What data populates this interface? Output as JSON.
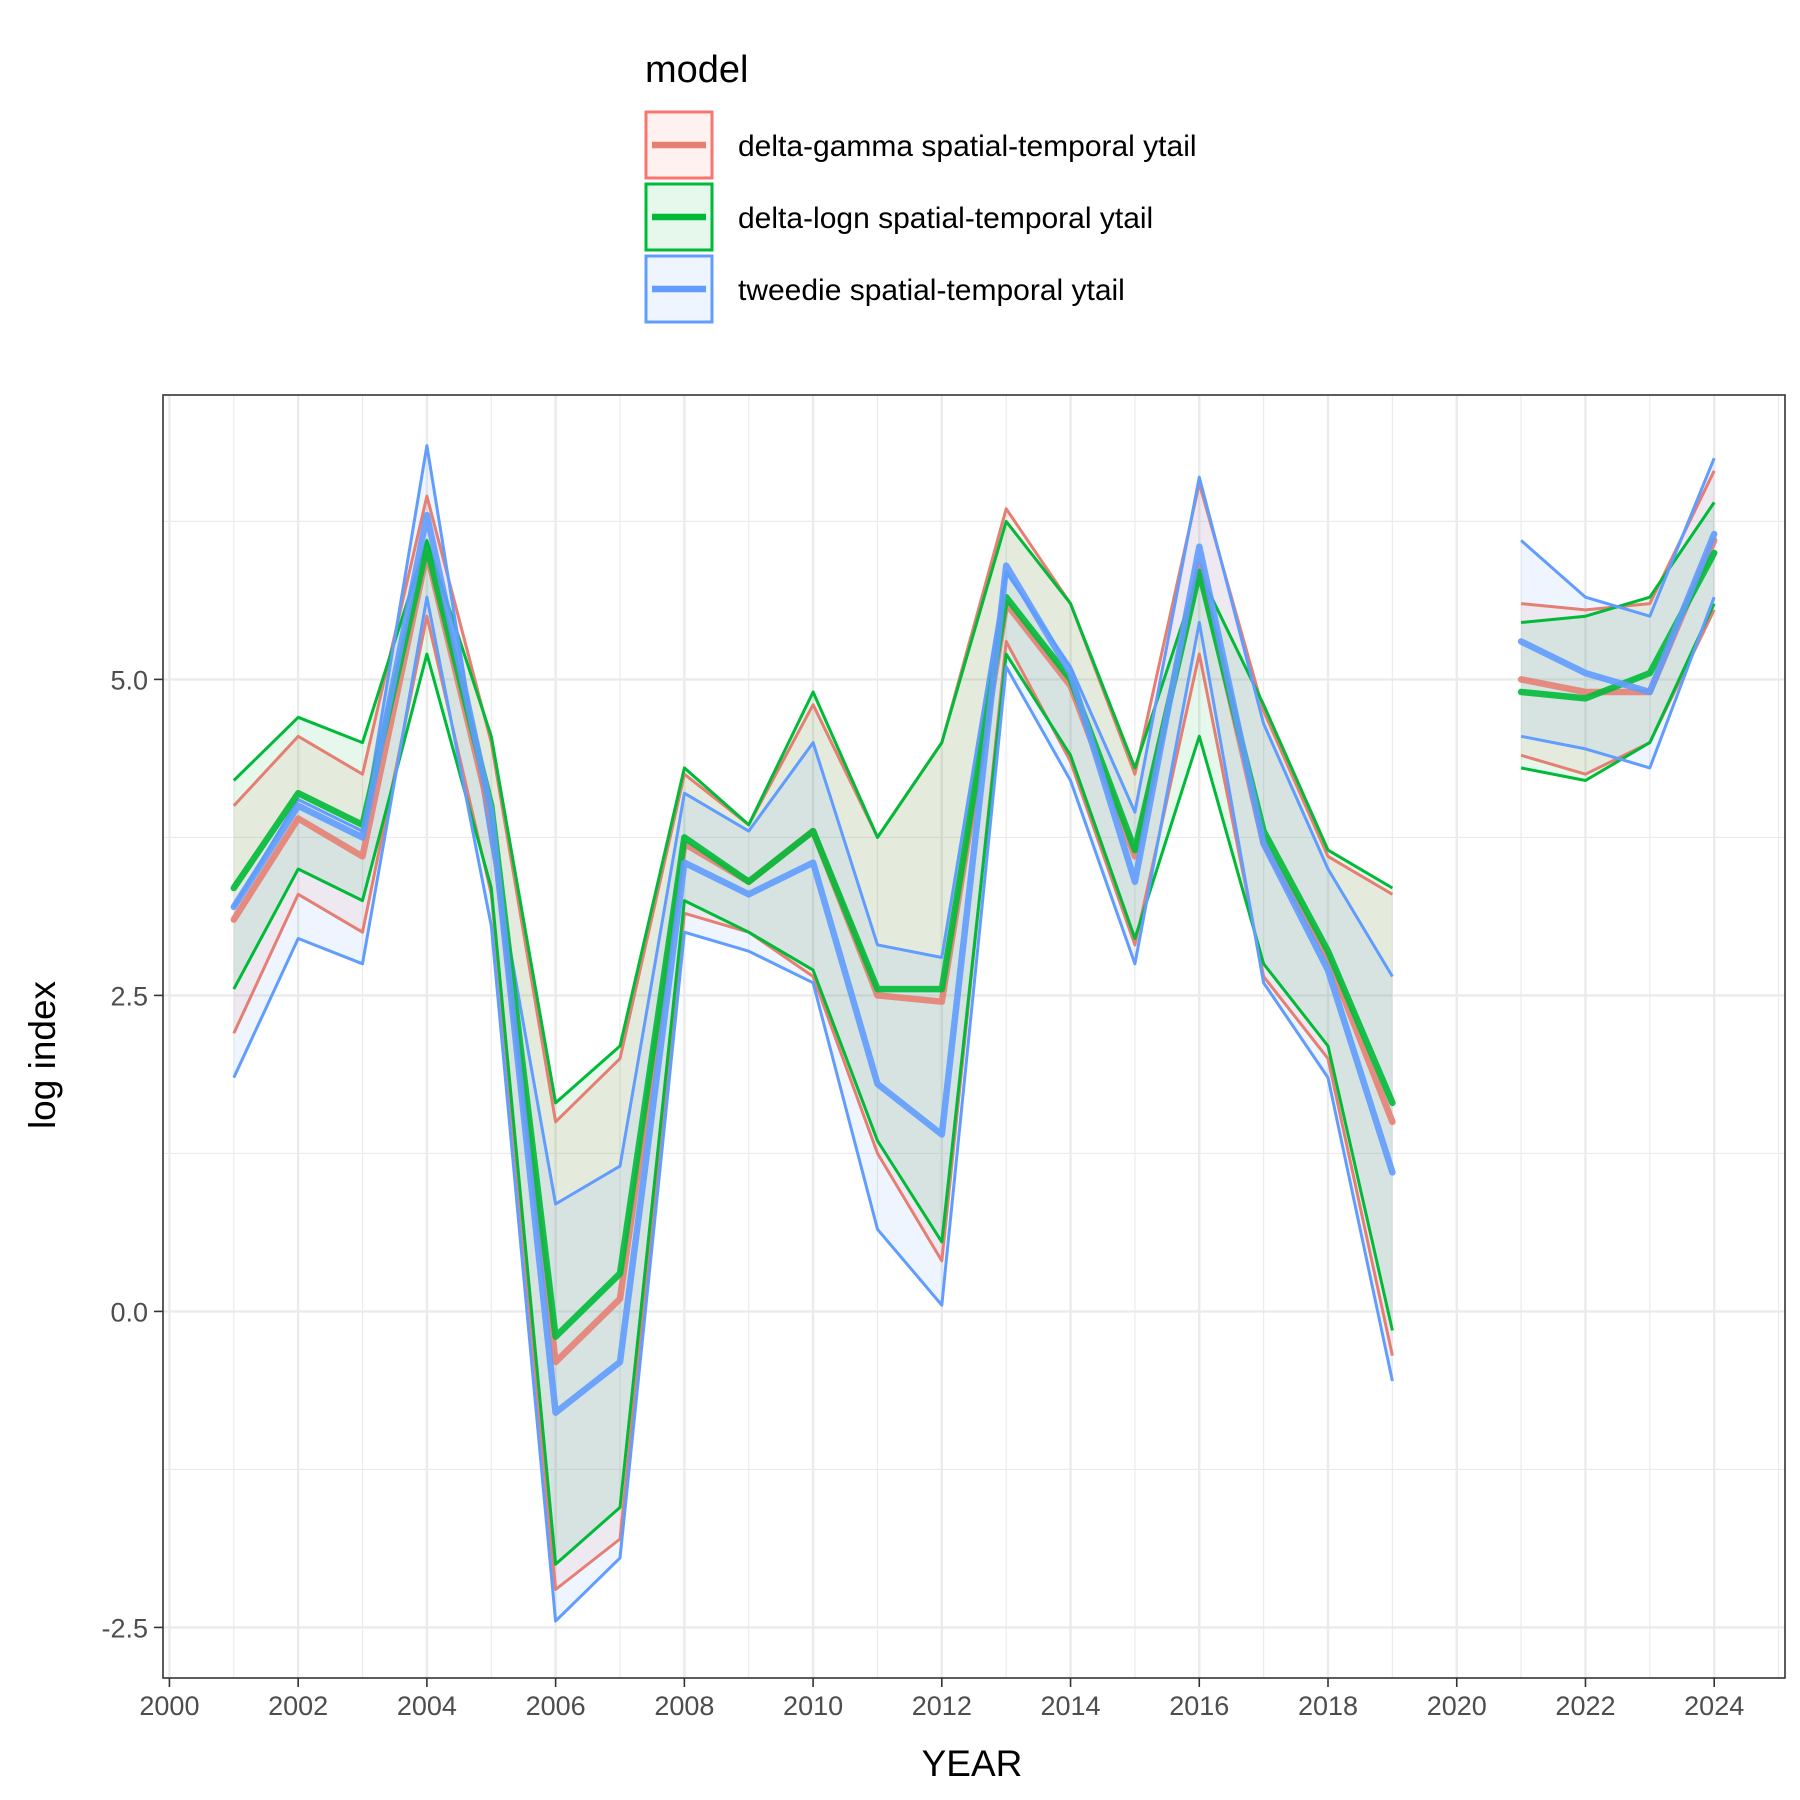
{
  "chart_data": {
    "type": "line",
    "xlabel": "YEAR",
    "ylabel": "log index",
    "xlim": [
      1999.9,
      2025.1
    ],
    "ylim": [
      -2.9,
      7.25
    ],
    "x_ticks": [
      2000,
      2002,
      2004,
      2006,
      2008,
      2010,
      2012,
      2014,
      2016,
      2018,
      2020,
      2022,
      2024
    ],
    "y_ticks": [
      -2.5,
      0.0,
      2.5,
      5.0
    ],
    "x_tick_labels": [
      "2000",
      "2002",
      "2004",
      "2006",
      "2008",
      "2010",
      "2012",
      "2014",
      "2016",
      "2018",
      "2020",
      "2022",
      "2024"
    ],
    "y_tick_labels": [
      "-2.5",
      "0.0",
      "2.5",
      "5.0"
    ],
    "grid": true,
    "legend": {
      "title": "model",
      "placement": "top"
    },
    "years": [
      2001,
      2002,
      2003,
      2004,
      2005,
      2006,
      2007,
      2008,
      2009,
      2010,
      2011,
      2012,
      2013,
      2014,
      2015,
      2016,
      2017,
      2018,
      2019,
      2020,
      2021,
      2022,
      2023,
      2024
    ],
    "series": [
      {
        "name": "delta-gamma spatial-temporal ytail",
        "color": "#F8766D",
        "line_color": "#E57F74",
        "estimate": [
          3.1,
          3.9,
          3.6,
          6.0,
          3.9,
          -0.4,
          0.1,
          3.7,
          3.4,
          3.8,
          2.5,
          2.45,
          5.6,
          4.95,
          3.6,
          5.9,
          3.7,
          2.8,
          1.5,
          null,
          5.0,
          4.9,
          4.9,
          6.1
        ],
        "lower": [
          2.2,
          3.3,
          3.0,
          5.5,
          3.3,
          -2.2,
          -1.8,
          3.15,
          3.0,
          2.65,
          1.25,
          0.4,
          5.3,
          4.35,
          2.9,
          5.2,
          2.65,
          2.0,
          -0.35,
          null,
          4.4,
          4.25,
          4.5,
          5.55
        ],
        "upper": [
          4.0,
          4.55,
          4.25,
          6.45,
          4.5,
          1.5,
          2.0,
          4.25,
          3.85,
          4.8,
          3.75,
          4.5,
          6.35,
          5.6,
          4.25,
          6.55,
          4.75,
          3.6,
          3.3,
          null,
          5.6,
          5.55,
          5.6,
          6.65
        ]
      },
      {
        "name": "delta-logn spatial-temporal ytail",
        "color": "#00BA38",
        "line_color": "#00BA38",
        "estimate": [
          3.35,
          4.1,
          3.85,
          6.05,
          4.0,
          -0.2,
          0.3,
          3.75,
          3.4,
          3.8,
          2.55,
          2.55,
          5.65,
          5.0,
          3.65,
          5.85,
          3.8,
          2.85,
          1.65,
          null,
          4.9,
          4.85,
          5.05,
          6.0
        ],
        "lower": [
          2.55,
          3.5,
          3.25,
          5.2,
          3.35,
          -2.0,
          -1.55,
          3.25,
          3.0,
          2.7,
          1.35,
          0.55,
          5.2,
          4.4,
          2.95,
          4.55,
          2.75,
          2.1,
          -0.15,
          null,
          4.3,
          4.2,
          4.5,
          5.6
        ],
        "upper": [
          4.2,
          4.7,
          4.5,
          6.1,
          4.55,
          1.65,
          2.1,
          4.3,
          3.85,
          4.9,
          3.75,
          4.5,
          6.25,
          5.6,
          4.3,
          5.85,
          4.8,
          3.65,
          3.35,
          null,
          5.45,
          5.5,
          5.65,
          6.4
        ]
      },
      {
        "name": "tweedie spatial-temporal ytail",
        "color": "#619CFF",
        "line_color": "#619CFF",
        "estimate": [
          3.2,
          4.0,
          3.75,
          6.3,
          3.95,
          -0.8,
          -0.4,
          3.55,
          3.3,
          3.55,
          1.8,
          1.4,
          5.9,
          5.05,
          3.4,
          6.05,
          3.7,
          2.7,
          1.1,
          null,
          5.3,
          5.05,
          4.9,
          6.15
        ],
        "lower": [
          1.85,
          2.95,
          2.75,
          5.65,
          3.05,
          -2.45,
          -1.95,
          3.0,
          2.85,
          2.6,
          0.65,
          0.05,
          5.1,
          4.2,
          2.75,
          5.45,
          2.6,
          1.85,
          -0.55,
          null,
          4.55,
          4.45,
          4.3,
          5.65
        ],
        "upper": [
          3.2,
          4.05,
          3.8,
          6.85,
          3.7,
          0.85,
          1.15,
          4.1,
          3.8,
          4.5,
          2.9,
          2.8,
          5.85,
          5.1,
          3.95,
          6.6,
          4.65,
          3.5,
          2.65,
          null,
          6.1,
          5.65,
          5.5,
          6.75
        ]
      }
    ]
  }
}
